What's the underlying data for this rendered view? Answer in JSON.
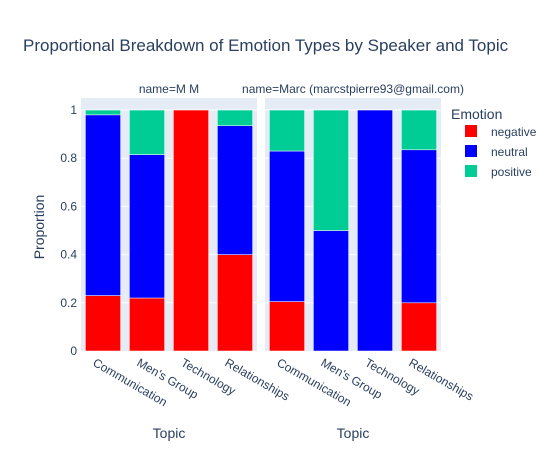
{
  "chart_data": {
    "type": "bar",
    "stacked": true,
    "title": "Proportional Breakdown of Emotion Types by Speaker and Topic",
    "ylabel": "Proportion",
    "xlabel": "Topic",
    "ylim": [
      0,
      1.05
    ],
    "yticks": [
      "0",
      "0.2",
      "0.4",
      "0.6",
      "0.8",
      "1"
    ],
    "legend": {
      "title": "Emotion",
      "position": "right",
      "items": [
        {
          "name": "negative",
          "color": "#ff0000"
        },
        {
          "name": "neutral",
          "color": "#0000ff"
        },
        {
          "name": "positive",
          "color": "#00cc96"
        }
      ]
    },
    "facets": [
      {
        "label": "name=M M",
        "categories": [
          "Communication",
          "Men's Group",
          "Technology",
          "Relationships"
        ],
        "series": [
          {
            "name": "negative",
            "values": [
              0.23,
              0.22,
              1.0,
              0.4
            ]
          },
          {
            "name": "neutral",
            "values": [
              0.75,
              0.595,
              0.0,
              0.535
            ]
          },
          {
            "name": "positive",
            "values": [
              0.02,
              0.185,
              0.0,
              0.065
            ]
          }
        ]
      },
      {
        "label": "name=Marc (marcstpierre93@gmail.com)",
        "categories": [
          "Communication",
          "Men's Group",
          "Technology",
          "Relationships"
        ],
        "series": [
          {
            "name": "negative",
            "values": [
              0.205,
              0.0,
              0.0,
              0.2
            ]
          },
          {
            "name": "neutral",
            "values": [
              0.625,
              0.5,
              1.0,
              0.635
            ]
          },
          {
            "name": "positive",
            "values": [
              0.17,
              0.5,
              0.0,
              0.165
            ]
          }
        ]
      }
    ]
  }
}
